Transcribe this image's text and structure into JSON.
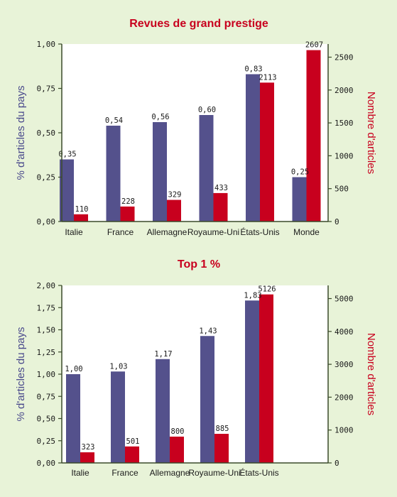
{
  "colors": {
    "background": "#e8f3d8",
    "plot_background": "#ffffff",
    "series_pct": "#54518c",
    "series_count": "#c8001e",
    "axis_pct": "#4a4a8c",
    "axis_count": "#c8001e",
    "title": "#c8001e"
  },
  "chart_data": [
    {
      "type": "bar",
      "title": "Revues de grand prestige",
      "categories": [
        "Italie",
        "France",
        "Allemagne",
        "Royaume-Uni",
        "États-Unis",
        "Monde"
      ],
      "ylabel_left": "% d'articles du pays",
      "ylabel_right": "Nombre d'articles",
      "ylim_left": [
        0,
        1
      ],
      "ylim_right": [
        0,
        2700
      ],
      "left_ticks": [
        "0,00",
        "0,25",
        "0,50",
        "0,75",
        "1,00"
      ],
      "left_tick_values": [
        0,
        0.25,
        0.5,
        0.75,
        1
      ],
      "right_ticks": [
        "0",
        "500",
        "1000",
        "1500",
        "2000",
        "2500"
      ],
      "right_tick_values": [
        0,
        500,
        1000,
        1500,
        2000,
        2500
      ],
      "series": [
        {
          "axis": "left",
          "values": [
            0.35,
            0.54,
            0.56,
            0.6,
            0.83,
            0.25
          ],
          "labels": [
            "0,35",
            "0,54",
            "0,56",
            "0,60",
            "0,83",
            "0,25"
          ]
        },
        {
          "axis": "right",
          "values": [
            110,
            228,
            329,
            433,
            2113,
            2607
          ],
          "labels": [
            "110",
            "228",
            "329",
            "433",
            "2113",
            "2607"
          ]
        }
      ]
    },
    {
      "type": "bar",
      "title": "Top 1 %",
      "categories": [
        "Italie",
        "France",
        "Allemagne",
        "Royaume-Uni",
        "États-Unis"
      ],
      "ylabel_left": "% d'articles du pays",
      "ylabel_right": "Nombre d'articles",
      "ylim_left": [
        0,
        2
      ],
      "ylim_right": [
        0,
        5400
      ],
      "left_ticks": [
        "0,00",
        "0,25",
        "0,50",
        "0,75",
        "1,00",
        "1,25",
        "1,50",
        "1,75",
        "2,00"
      ],
      "left_tick_values": [
        0,
        0.25,
        0.5,
        0.75,
        1,
        1.25,
        1.5,
        1.75,
        2
      ],
      "right_ticks": [
        "0",
        "1000",
        "2000",
        "3000",
        "4000",
        "5000"
      ],
      "right_tick_values": [
        0,
        1000,
        2000,
        3000,
        4000,
        5000
      ],
      "series": [
        {
          "axis": "left",
          "values": [
            1.0,
            1.03,
            1.17,
            1.43,
            1.83
          ],
          "labels": [
            "1,00",
            "1,03",
            "1,17",
            "1,43",
            "1,83"
          ]
        },
        {
          "axis": "right",
          "values": [
            323,
            501,
            800,
            885,
            5126
          ],
          "labels": [
            "323",
            "501",
            "800",
            "885",
            "5126"
          ]
        }
      ]
    }
  ]
}
